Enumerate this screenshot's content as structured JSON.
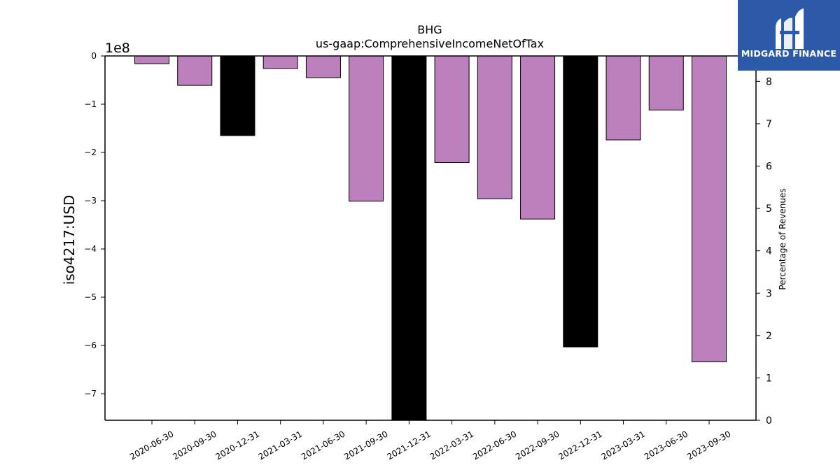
{
  "chart_data": {
    "type": "bar",
    "title": "BHG",
    "subtitle": "us-gaap:ComprehensiveIncomeNetOfTax",
    "ylabel": "iso4217:USD",
    "y_offset_label": "1e8",
    "y_scale": 100000000,
    "ylim": [
      -7.55,
      0
    ],
    "yticks": [
      0,
      -1,
      -2,
      -3,
      -4,
      -5,
      -6,
      -7
    ],
    "ytick_labels": [
      "0",
      "−1",
      "−2",
      "−3",
      "−4",
      "−5",
      "−6",
      "−7"
    ],
    "y2label": "Percentage of Revenues",
    "y2lim": [
      0,
      8.6
    ],
    "y2ticks": [
      0,
      1,
      2,
      3,
      4,
      5,
      6,
      7,
      8
    ],
    "categories": [
      "2020-06-30",
      "2020-09-30",
      "2020-12-31",
      "2021-03-31",
      "2021-06-30",
      "2021-09-30",
      "2021-12-31",
      "2022-03-31",
      "2022-06-30",
      "2022-09-30",
      "2022-12-31",
      "2023-03-31",
      "2023-06-30",
      "2023-09-30"
    ],
    "values": [
      -0.16,
      -0.61,
      -1.65,
      -0.26,
      -0.45,
      -3.01,
      -7.55,
      -2.21,
      -2.96,
      -3.38,
      -6.03,
      -1.74,
      -1.12,
      -6.34
    ],
    "colors": [
      "#bc80bd",
      "#bc80bd",
      "#000000",
      "#bc80bd",
      "#bc80bd",
      "#bc80bd",
      "#000000",
      "#bc80bd",
      "#bc80bd",
      "#bc80bd",
      "#000000",
      "#bc80bd",
      "#bc80bd",
      "#bc80bd"
    ],
    "grid": false
  },
  "logo": {
    "text": "MIDGARD FINANCE",
    "color": "#2d5aa8"
  }
}
